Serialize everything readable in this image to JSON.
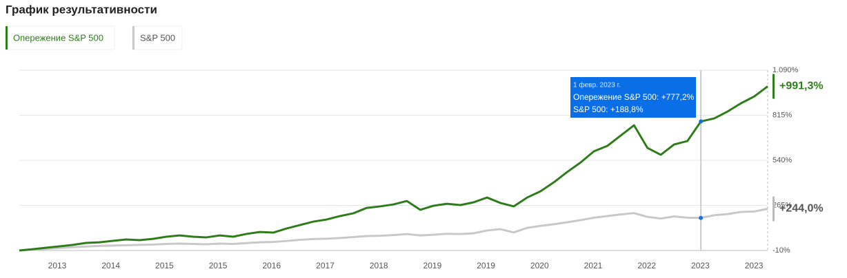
{
  "chart_data": {
    "type": "line",
    "title": "График результативности",
    "xtick_labels": [
      "2013",
      "2014",
      "2015",
      "2015",
      "2016",
      "2017",
      "2018",
      "2019",
      "2019",
      "2020",
      "2021",
      "2022",
      "2023",
      "2023"
    ],
    "series": [
      {
        "name": "Опережение S&P 500",
        "color": "#2e7d1a",
        "values": [
          -10,
          -2,
          7,
          15,
          24,
          36,
          40,
          49,
          57,
          53,
          61,
          74,
          82,
          74,
          70,
          82,
          74,
          91,
          103,
          99,
          124,
          145,
          166,
          179,
          200,
          217,
          250,
          259,
          271,
          292,
          238,
          263,
          275,
          267,
          284,
          313,
          280,
          259,
          313,
          351,
          406,
          469,
          527,
          595,
          628,
          691,
          754,
          616,
          574,
          637,
          658,
          777.2,
          796,
          838,
          888,
          930,
          991.3
        ],
        "end_label": "+991,3%"
      },
      {
        "name": "S&P 500",
        "color": "#c8c8c8",
        "values": [
          -10,
          -5,
          0,
          5,
          10,
          14,
          18,
          20,
          22,
          24,
          26,
          30,
          32,
          30,
          28,
          32,
          30,
          35,
          40,
          42,
          48,
          55,
          60,
          62,
          66,
          72,
          78,
          80,
          84,
          90,
          82,
          86,
          92,
          90,
          95,
          112,
          120,
          100,
          128,
          140,
          150,
          162,
          175,
          190,
          200,
          210,
          218,
          195,
          185,
          198,
          190,
          188.8,
          205,
          212,
          225,
          228,
          244
        ],
        "end_label": "+244,0%"
      }
    ],
    "ylim": [
      -10,
      1090
    ],
    "yticks": [
      {
        "value": -10,
        "label": "-10%"
      },
      {
        "value": 265,
        "label": "265%"
      },
      {
        "value": 540,
        "label": "540%"
      },
      {
        "value": 815,
        "label": "815%"
      },
      {
        "value": 1090,
        "label": "1.090%"
      }
    ],
    "grid": true,
    "tooltip": {
      "index": 51,
      "date": "1 февр. 2023 г.",
      "lines": [
        "Опережение S&P 500: +777,2%",
        "S&P 500: +188,8%"
      ]
    }
  }
}
